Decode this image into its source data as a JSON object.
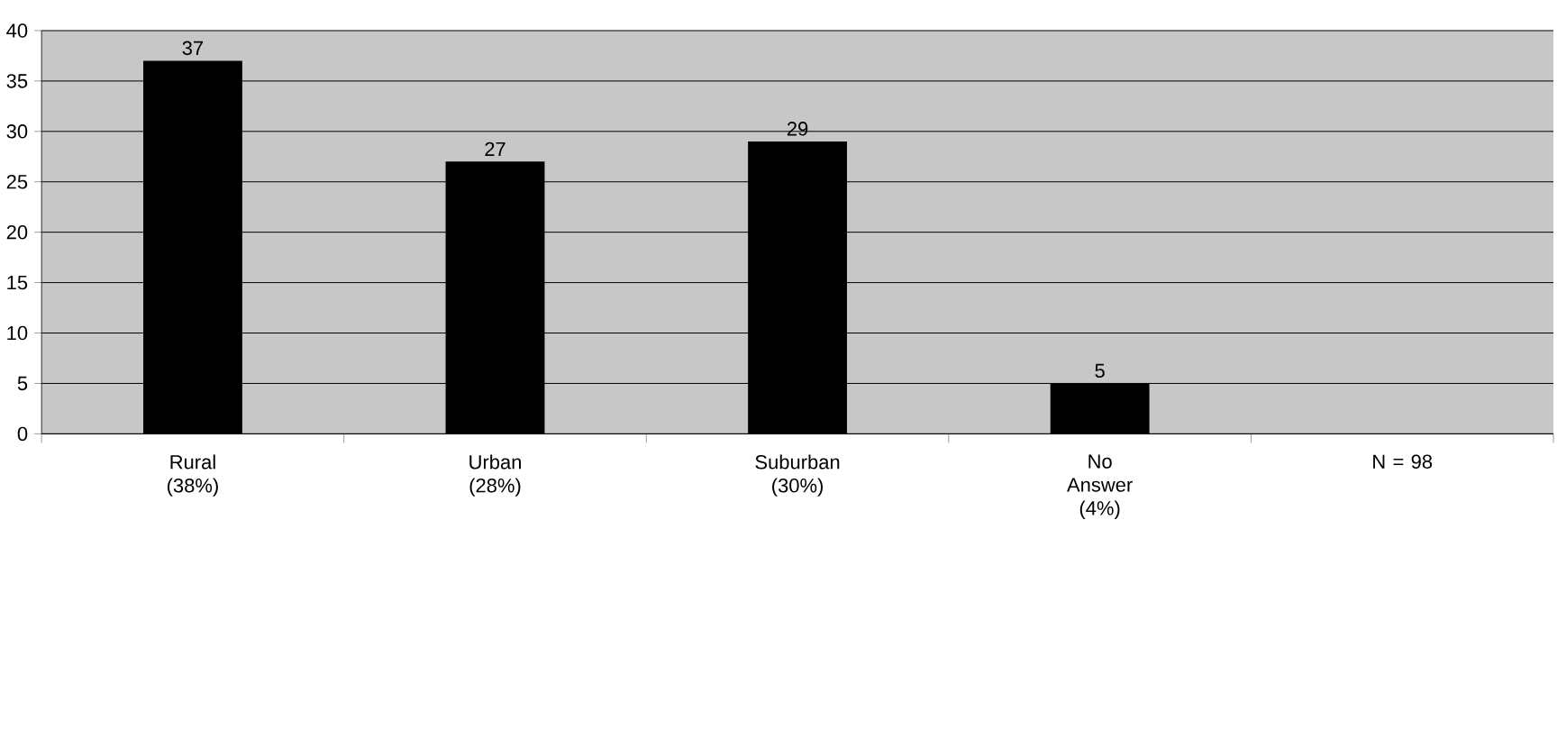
{
  "chart_data": {
    "type": "bar",
    "categories": [
      "Rural (38%)",
      "Urban (28%)",
      "Suburban (30%)",
      "No Answer (4%)",
      "N = 98"
    ],
    "values": [
      37,
      27,
      29,
      5,
      null
    ],
    "color": "#000000",
    "ylim": [
      0,
      40
    ],
    "yticks": [
      0,
      5,
      10,
      15,
      20,
      25,
      30,
      35,
      40
    ],
    "grid": "y",
    "data_labels": true
  }
}
